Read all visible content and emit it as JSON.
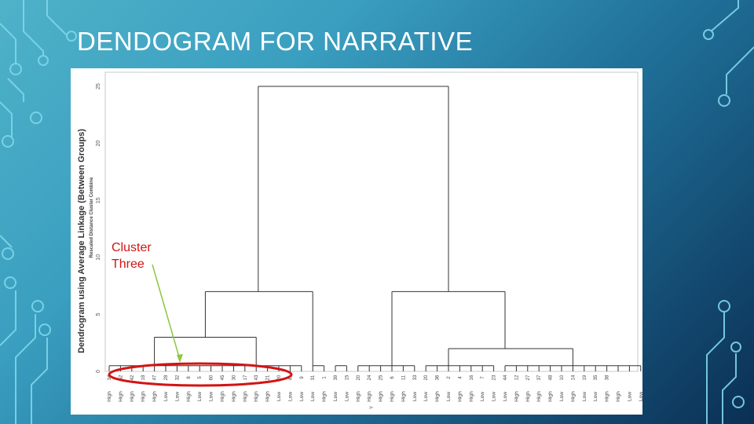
{
  "slide": {
    "title": "DENDOGRAM FOR NARRATIVE"
  },
  "figure": {
    "title": "Dendrogram using Average Linkage (Between Groups)",
    "subtitle": "Rescaled Distance Cluster Combine",
    "axis_ticks": [
      "0",
      "5",
      "10",
      "15",
      "20",
      "25"
    ],
    "leaf_labels": [
      "High",
      "High",
      "High",
      "High",
      "High",
      "Low",
      "Low",
      "High",
      "Low",
      "Low",
      "High",
      "High",
      "High",
      "High",
      "High",
      "Low",
      "Low",
      "Low",
      "Low",
      "High",
      "Low",
      "Low",
      "High",
      "High",
      "High",
      "High",
      "High",
      "Low",
      "Low",
      "High",
      "Low",
      "High",
      "High",
      "Low",
      "Low",
      "Low",
      "High",
      "High",
      "High",
      "High",
      "Low",
      "High",
      "Low",
      "Low",
      "High",
      "High",
      "Low",
      "Low"
    ],
    "case_ids": [
      "34",
      "52",
      "42",
      "18",
      "47",
      "28",
      "32",
      "8",
      "5",
      "60",
      "45",
      "30",
      "17",
      "43",
      "21",
      "20",
      "41",
      "9",
      "31",
      "1",
      "39",
      "15",
      "20",
      "24",
      "25",
      "6",
      "11",
      "33",
      "20",
      "36",
      "2",
      "4",
      "16",
      "7",
      "23",
      "44",
      "12",
      "27",
      "37",
      "48",
      "10",
      "14",
      "19",
      "35",
      "38",
      "",
      "",
      ""
    ],
    "bottom_label": "Y",
    "annotation": {
      "callout_line1": "Cluster",
      "callout_line2": "Three",
      "callout_color": "#d21414",
      "arrow_color": "#8dc63f"
    },
    "chart_data": {
      "type": "dendrogram",
      "scale_range": [
        0,
        25
      ],
      "merges": [
        {
          "cluster": "cluster-three",
          "leaves": [
            0,
            17
          ],
          "distance": 3
        },
        {
          "cluster": "left-group",
          "leaves": [
            0,
            21
          ],
          "distance": 7
        },
        {
          "cluster": "right-group",
          "leaves": [
            22,
            47
          ],
          "distance": 7
        },
        {
          "cluster": "right-subgroup",
          "leaves": [
            35,
            47
          ],
          "distance": 2
        },
        {
          "cluster": "root",
          "leaves": [
            0,
            47
          ],
          "distance": 25
        }
      ]
    }
  }
}
